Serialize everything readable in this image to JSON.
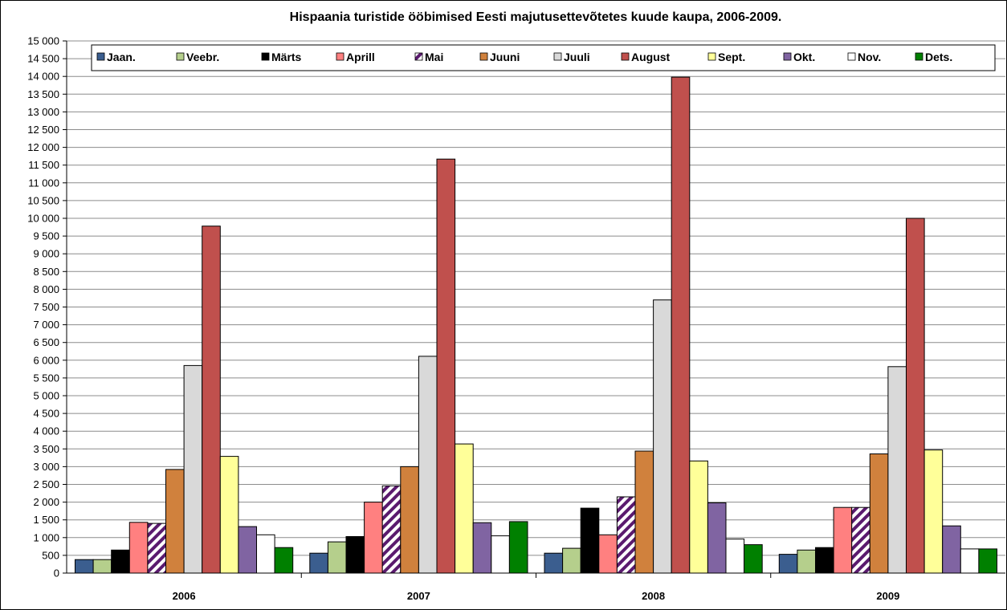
{
  "chart_data": {
    "type": "bar",
    "title": "Hispaania turistide ööbimised Eesti majutusettevõtetes kuude kaupa, 2006-2009.",
    "xlabel": "",
    "ylabel": "",
    "ylim": [
      0,
      15000
    ],
    "ytick_step": 500,
    "ytick_labels": [
      "0",
      "500",
      "1 000",
      "1 500",
      "2 000",
      "2 500",
      "3 000",
      "3 500",
      "4 000",
      "4 500",
      "5 000",
      "5 500",
      "6 000",
      "6 500",
      "7 000",
      "7 500",
      "8 000",
      "8 500",
      "9 000",
      "9 500",
      "10 000",
      "10 500",
      "11 000",
      "11 500",
      "12 000",
      "12 500",
      "13 000",
      "13 500",
      "14 000",
      "14 500",
      "15 000"
    ],
    "grid": true,
    "legend_position": "top",
    "categories": [
      "2006",
      "2007",
      "2008",
      "2009"
    ],
    "series": [
      {
        "name": "Jaan.",
        "color": "#3b5e8f",
        "values": [
          380,
          560,
          560,
          530
        ]
      },
      {
        "name": "Veebr.",
        "color": "#b5cf8c",
        "values": [
          380,
          880,
          700,
          650
        ]
      },
      {
        "name": "Märts",
        "color": "#000000",
        "values": [
          650,
          1030,
          1830,
          720
        ]
      },
      {
        "name": "Aprill",
        "color": "#ff8080",
        "values": [
          1430,
          2000,
          1080,
          1850
        ]
      },
      {
        "name": "Mai",
        "color": "#5a1a6e",
        "pattern": "stripes",
        "values": [
          1400,
          2460,
          2150,
          1850
        ]
      },
      {
        "name": "Juuni",
        "color": "#d0813d",
        "values": [
          2920,
          3000,
          3440,
          3360
        ]
      },
      {
        "name": "Juuli",
        "color": "#d9d9d9",
        "values": [
          5850,
          6110,
          7700,
          5820
        ]
      },
      {
        "name": "August",
        "color": "#c0504d",
        "values": [
          9780,
          11670,
          13980,
          10000
        ]
      },
      {
        "name": "Sept.",
        "color": "#ffff99",
        "values": [
          3290,
          3640,
          3160,
          3470
        ]
      },
      {
        "name": "Okt.",
        "color": "#8064a2",
        "values": [
          1310,
          1420,
          1980,
          1330
        ]
      },
      {
        "name": "Nov.",
        "color": "#ffffff",
        "values": [
          1080,
          1050,
          960,
          680
        ]
      },
      {
        "name": "Dets.",
        "color": "#008000",
        "values": [
          720,
          1450,
          800,
          680
        ]
      }
    ]
  }
}
